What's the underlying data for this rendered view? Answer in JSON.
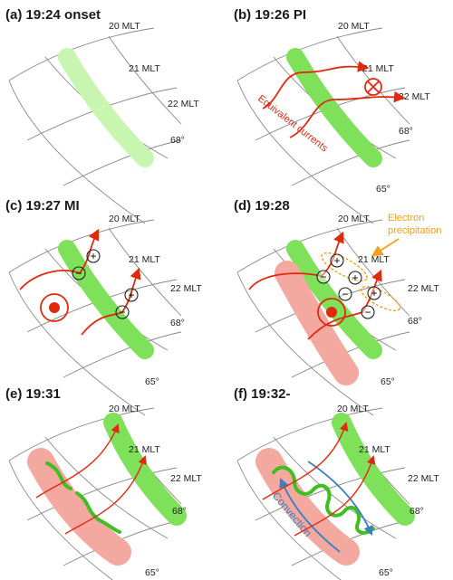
{
  "panels": [
    {
      "id": "a",
      "title": "(a) 19:24 onset"
    },
    {
      "id": "b",
      "title": "(b) 19:26 PI"
    },
    {
      "id": "c",
      "title": "(c) 19:27 MI"
    },
    {
      "id": "d",
      "title": "(d) 19:28"
    },
    {
      "id": "e",
      "title": "(e) 19:31"
    },
    {
      "id": "f",
      "title": "(f) 19:32-"
    }
  ],
  "grid_labels": {
    "mlt20": "20 MLT",
    "mlt21": "21 MLT",
    "mlt22": "22 MLT",
    "lat68": "68°",
    "lat65": "65°"
  },
  "annotations": {
    "equivalent_currents": "Equivalent currents",
    "electron_line1": "Electron",
    "electron_line2": "precipitation",
    "convection": "Convection"
  },
  "charges": {
    "plus": "+",
    "minus": "−"
  },
  "colors": {
    "green_band": "#7fe05a",
    "pale_green_band": "#c8f5b0",
    "red_band": "#f3a9a0",
    "current_arrow": "#e02a10",
    "orange": "#f0a020",
    "blue": "#3a7fc0",
    "wave_green": "#3fc020"
  }
}
